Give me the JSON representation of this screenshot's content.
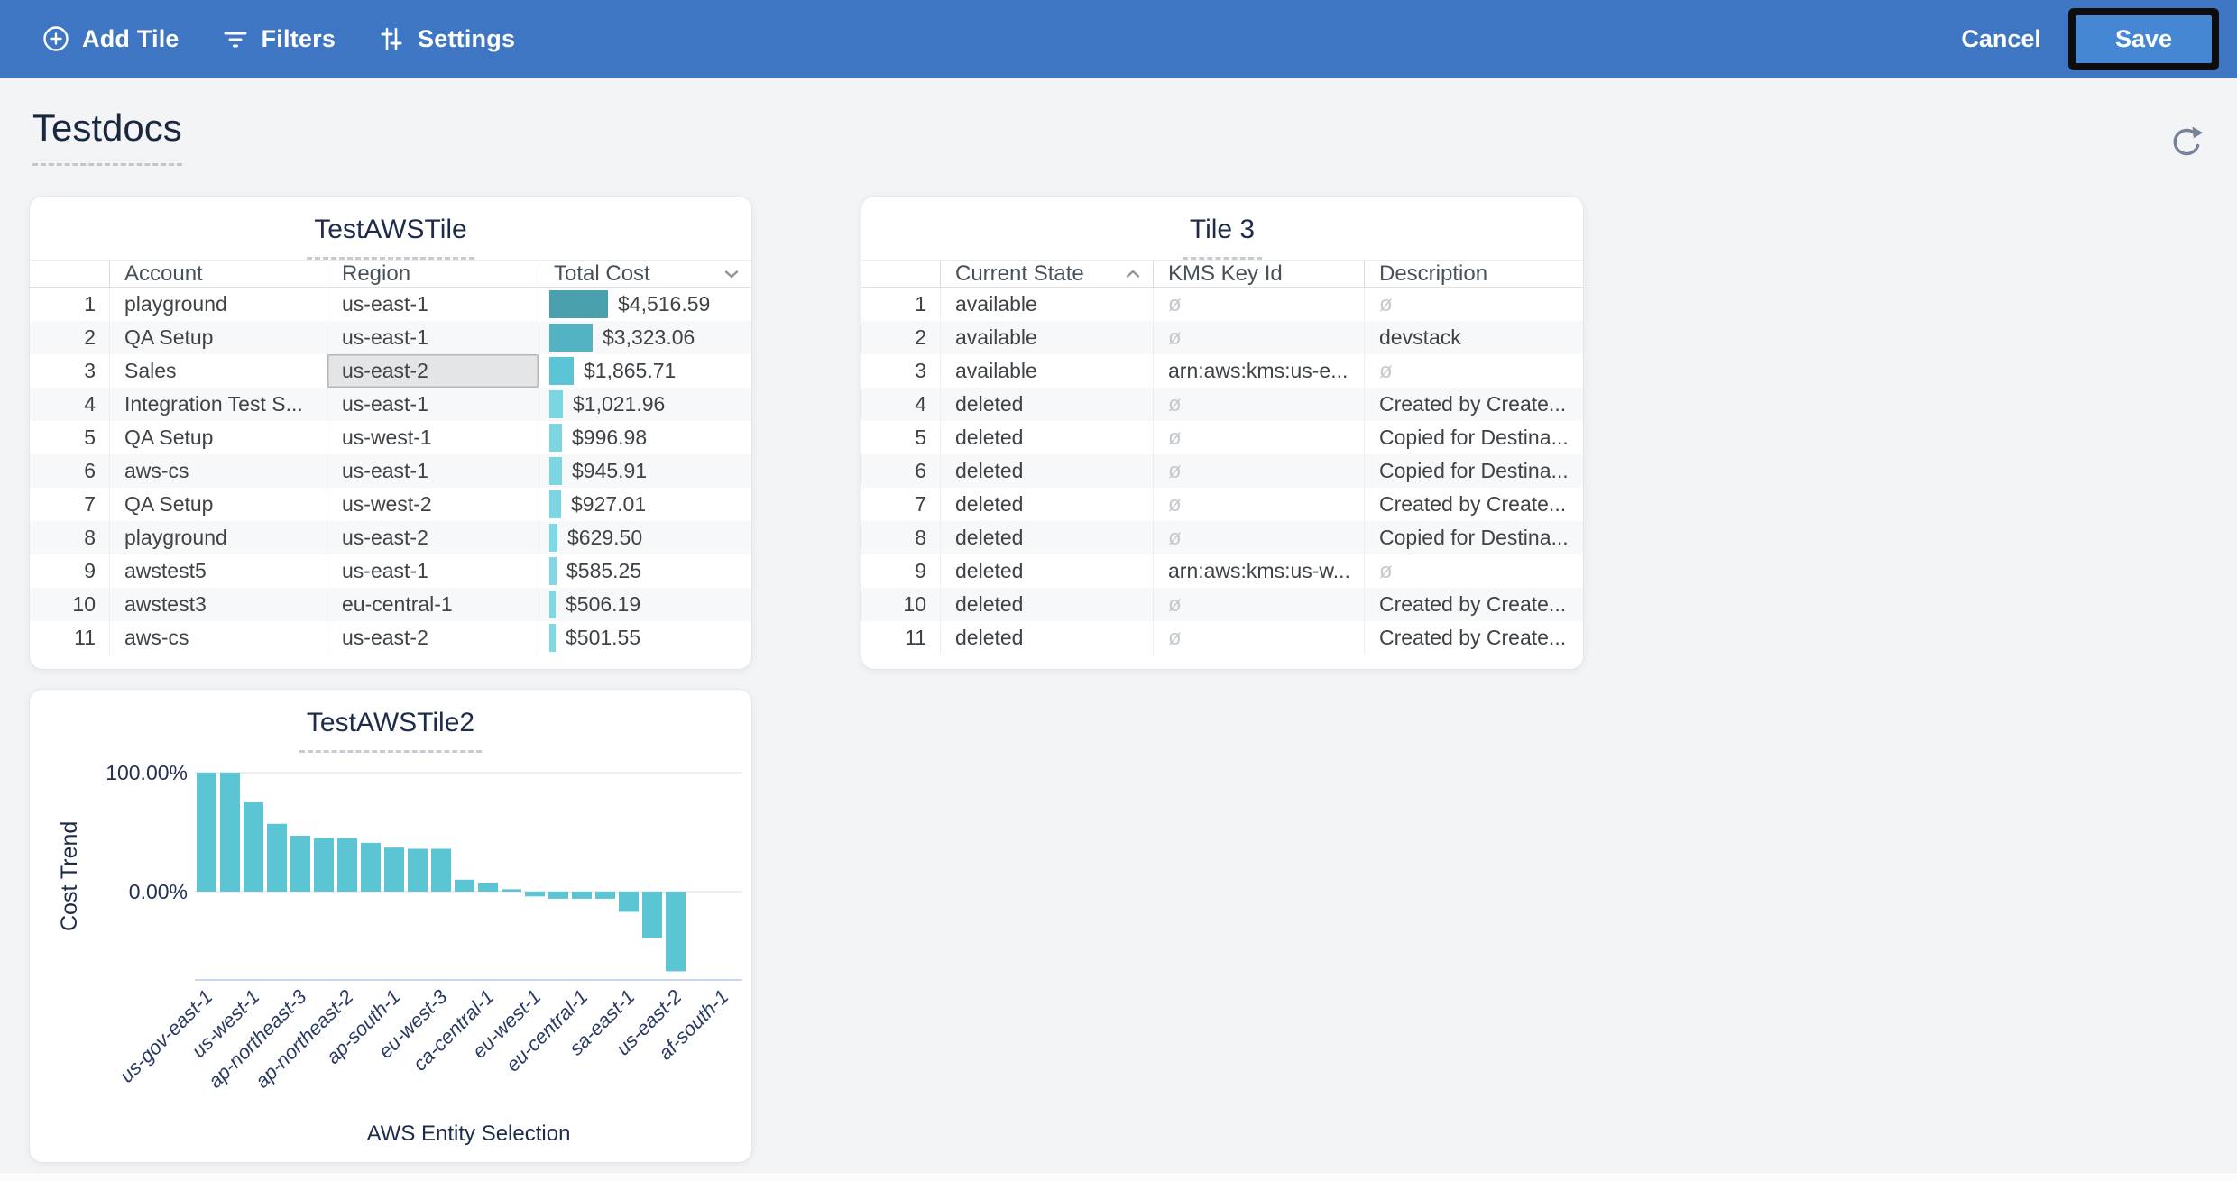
{
  "toolbar": {
    "items": [
      {
        "label": "Add Tile",
        "icon": "plus-circle-icon"
      },
      {
        "label": "Filters",
        "icon": "filter-icon"
      },
      {
        "label": "Settings",
        "icon": "sliders-icon"
      }
    ],
    "cancel_label": "Cancel",
    "save_label": "Save"
  },
  "page": {
    "title": "Testdocs"
  },
  "colors": {
    "topbar": "#3e76c4",
    "save_button": "#4587d3",
    "chart_bar": "#5bc5d3",
    "page_bg": "#f3f4f6"
  },
  "tiles": [
    {
      "id": "testawstile",
      "title": "TestAWSTile",
      "columns": [
        {
          "label": "Account"
        },
        {
          "label": "Region"
        },
        {
          "label": "Total Cost",
          "sort_icon": "chevron-down"
        }
      ],
      "max_cost": 4516.59,
      "rows": [
        {
          "n": "1",
          "account": "playground",
          "region": "us-east-1",
          "total_cost": "$4,516.59",
          "cost_value": 4516.59,
          "bar_color": "#4aa0ac"
        },
        {
          "n": "2",
          "account": "QA Setup",
          "region": "us-east-1",
          "total_cost": "$3,323.06",
          "cost_value": 3323.06,
          "bar_color": "#53b3c2"
        },
        {
          "n": "3",
          "account": "Sales",
          "region": "us-east-2",
          "total_cost": "$1,865.71",
          "cost_value": 1865.71,
          "bar_color": "#5cc5d5",
          "region_selected": true
        },
        {
          "n": "4",
          "account": "Integration Test S...",
          "region": "us-east-1",
          "total_cost": "$1,021.96",
          "cost_value": 1021.96,
          "bar_color": "#7bd6e2"
        },
        {
          "n": "5",
          "account": "QA Setup",
          "region": "us-west-1",
          "total_cost": "$996.98",
          "cost_value": 996.98,
          "bar_color": "#7bd6e2"
        },
        {
          "n": "6",
          "account": "aws-cs",
          "region": "us-east-1",
          "total_cost": "$945.91",
          "cost_value": 945.91,
          "bar_color": "#7bd6e2"
        },
        {
          "n": "7",
          "account": "QA Setup",
          "region": "us-west-2",
          "total_cost": "$927.01",
          "cost_value": 927.01,
          "bar_color": "#7bd6e2"
        },
        {
          "n": "8",
          "account": "playground",
          "region": "us-east-2",
          "total_cost": "$629.50",
          "cost_value": 629.5,
          "bar_color": "#7fd8e3"
        },
        {
          "n": "9",
          "account": "awstest5",
          "region": "us-east-1",
          "total_cost": "$585.25",
          "cost_value": 585.25,
          "bar_color": "#7fd8e3"
        },
        {
          "n": "10",
          "account": "awstest3",
          "region": "eu-central-1",
          "total_cost": "$506.19",
          "cost_value": 506.19,
          "bar_color": "#7fd8e3"
        },
        {
          "n": "11",
          "account": "aws-cs",
          "region": "us-east-2",
          "total_cost": "$501.55",
          "cost_value": 501.55,
          "bar_color": "#7fd8e3"
        }
      ]
    },
    {
      "id": "tile-3",
      "title": "Tile 3",
      "null_symbol": "ø",
      "columns": [
        {
          "label": "Current State",
          "sort_icon": "chevron-up"
        },
        {
          "label": "KMS Key Id"
        },
        {
          "label": "Description"
        }
      ],
      "rows": [
        {
          "n": "1",
          "current_state": "available",
          "kms_key_id": null,
          "description": null
        },
        {
          "n": "2",
          "current_state": "available",
          "kms_key_id": null,
          "description": "devstack"
        },
        {
          "n": "3",
          "current_state": "available",
          "kms_key_id": "arn:aws:kms:us-e...",
          "description": null
        },
        {
          "n": "4",
          "current_state": "deleted",
          "kms_key_id": null,
          "description": "Created by Create..."
        },
        {
          "n": "5",
          "current_state": "deleted",
          "kms_key_id": null,
          "description": "Copied for Destina..."
        },
        {
          "n": "6",
          "current_state": "deleted",
          "kms_key_id": null,
          "description": "Copied for Destina..."
        },
        {
          "n": "7",
          "current_state": "deleted",
          "kms_key_id": null,
          "description": "Created by Create..."
        },
        {
          "n": "8",
          "current_state": "deleted",
          "kms_key_id": null,
          "description": "Copied for Destina..."
        },
        {
          "n": "9",
          "current_state": "deleted",
          "kms_key_id": "arn:aws:kms:us-w...",
          "description": null
        },
        {
          "n": "10",
          "current_state": "deleted",
          "kms_key_id": null,
          "description": "Created by Create..."
        },
        {
          "n": "11",
          "current_state": "deleted",
          "kms_key_id": null,
          "description": "Created by Create..."
        }
      ]
    }
  ],
  "chart_data": {
    "type": "bar",
    "title": "TestAWSTile2",
    "xlabel": "AWS Entity Selection",
    "ylabel": "Cost Trend",
    "ytick_labels": [
      "100.00%",
      "0.00%"
    ],
    "ylim": [
      -74,
      100
    ],
    "grid": "horizontal",
    "bar_color": "#5bc5d3",
    "values": [
      100,
      100,
      75,
      57,
      47,
      45,
      45,
      41,
      37,
      36,
      36,
      10,
      7,
      2,
      -4,
      -6,
      -6,
      -6,
      -17,
      -39,
      -67,
      0,
      0
    ],
    "xtick_every": 2,
    "xtick_labels": [
      "us-gov-east-1",
      "us-west-1",
      "ap-northeast-3",
      "ap-northeast-2",
      "ap-south-1",
      "eu-west-3",
      "ca-central-1",
      "eu-west-1",
      "eu-central-1",
      "sa-east-1",
      "us-east-2",
      "af-south-1"
    ]
  }
}
